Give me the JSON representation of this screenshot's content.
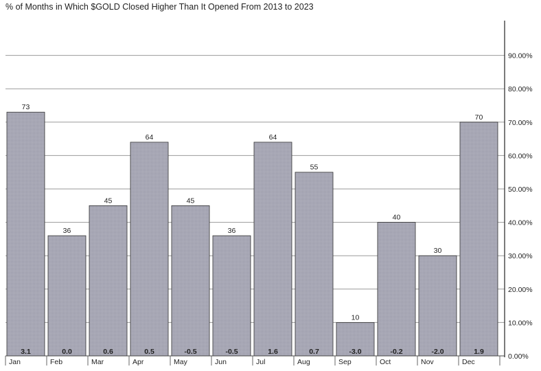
{
  "chart_data": {
    "type": "bar",
    "title": "% of Months in Which $GOLD Closed Higher Than It Opened From 2013 to 2023",
    "categories": [
      "Jan",
      "Feb",
      "Mar",
      "Apr",
      "May",
      "Jun",
      "Jul",
      "Aug",
      "Sep",
      "Oct",
      "Nov",
      "Dec"
    ],
    "values": [
      73,
      36,
      45,
      64,
      45,
      36,
      64,
      55,
      10,
      40,
      30,
      70
    ],
    "bottom_labels": [
      "3.1",
      "0.0",
      "0.6",
      "0.5",
      "-0.5",
      "-0.5",
      "1.6",
      "0.7",
      "-3.0",
      "-0.2",
      "-2.0",
      "1.9"
    ],
    "y_ticks": [
      "0.00%",
      "10.00%",
      "20.00%",
      "30.00%",
      "40.00%",
      "50.00%",
      "60.00%",
      "70.00%",
      "80.00%",
      "90.00%"
    ],
    "ylim": [
      0,
      100
    ],
    "y_axis_side": "right",
    "grid": true,
    "bar_color": "#a3a3b2"
  }
}
